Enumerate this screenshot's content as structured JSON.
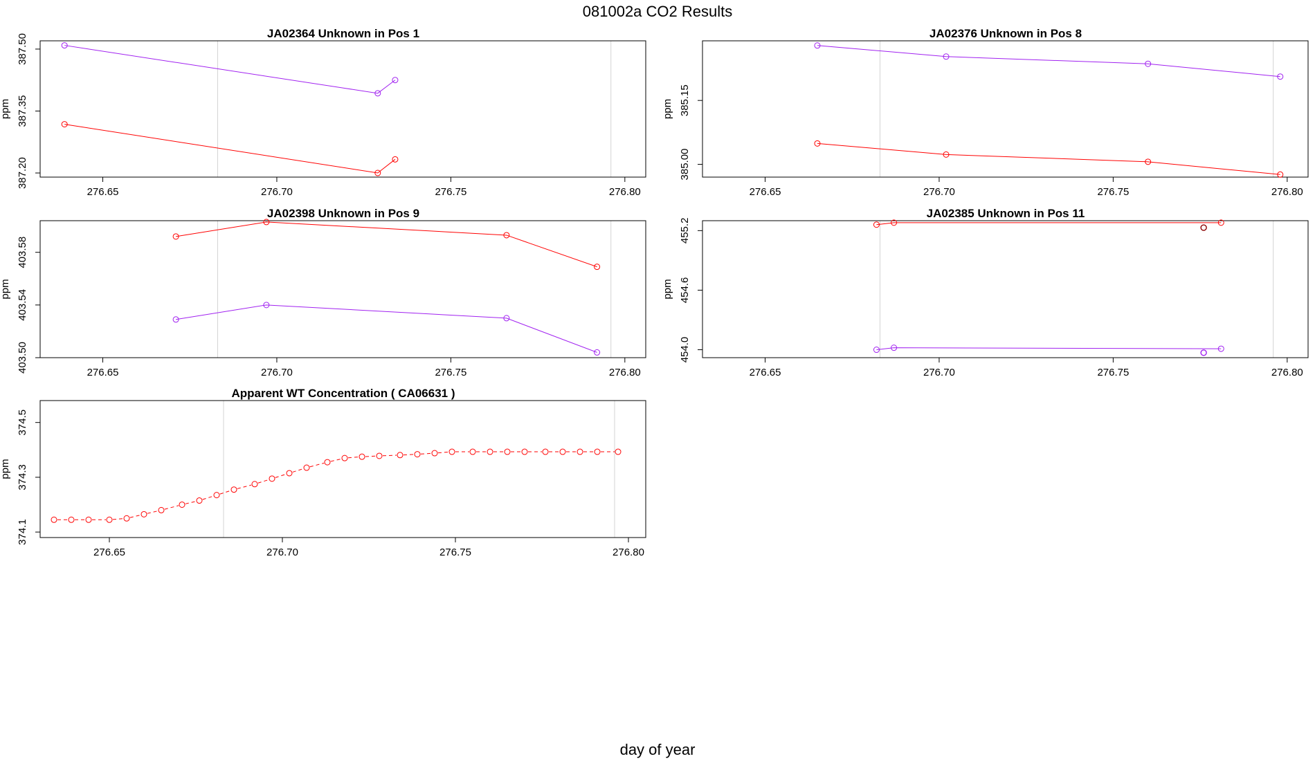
{
  "figure": {
    "title": "081002a  CO2 Results",
    "xlabel": "day of year"
  },
  "colors": {
    "red": "#ff0000",
    "purple": "#a020f0",
    "dark_red": "#8b0000",
    "ref_line": "#d3d3d3"
  },
  "chart_data": [
    {
      "type": "line",
      "title": "JA02364    Unknown in Pos 1",
      "ylabel": "ppm",
      "xlim": [
        276.632,
        276.806
      ],
      "ylim": [
        387.19,
        387.52
      ],
      "xticks": [
        "276.65",
        "276.70",
        "276.75",
        "276.80"
      ],
      "yticks": [
        "387.20",
        "387.35",
        "387.50"
      ],
      "vlines": [
        276.683,
        276.796
      ],
      "series": [
        {
          "name": "purple",
          "color": "purple",
          "x": [
            276.639,
            276.729,
            276.734
          ],
          "y": [
            387.509,
            387.393,
            387.425
          ]
        },
        {
          "name": "red",
          "color": "red",
          "x": [
            276.639,
            276.729,
            276.734
          ],
          "y": [
            387.318,
            387.2,
            387.233
          ]
        }
      ]
    },
    {
      "type": "line",
      "title": "JA02376    Unknown in Pos 8",
      "ylabel": "ppm",
      "xlim": [
        276.632,
        276.806
      ],
      "ylim": [
        384.97,
        385.29
      ],
      "xticks": [
        "276.65",
        "276.70",
        "276.75",
        "276.80"
      ],
      "yticks": [
        "385.00",
        "385.15"
      ],
      "vlines": [
        276.683,
        276.796
      ],
      "series": [
        {
          "name": "purple",
          "color": "purple",
          "x": [
            276.665,
            276.702,
            276.76,
            276.798
          ],
          "y": [
            385.279,
            385.253,
            385.236,
            385.206
          ]
        },
        {
          "name": "red",
          "color": "red",
          "x": [
            276.665,
            276.702,
            276.76,
            276.798
          ],
          "y": [
            385.049,
            385.023,
            385.006,
            384.976
          ]
        }
      ]
    },
    {
      "type": "line",
      "title": "JA02398    Unknown in Pos 9",
      "ylabel": "ppm",
      "xlim": [
        276.632,
        276.806
      ],
      "ylim": [
        403.5,
        403.604
      ],
      "xticks": [
        "276.65",
        "276.70",
        "276.75",
        "276.80"
      ],
      "yticks": [
        "403.50",
        "403.54",
        "403.58"
      ],
      "vlines": [
        276.683,
        276.796
      ],
      "series": [
        {
          "name": "red",
          "color": "red",
          "x": [
            276.671,
            276.697,
            276.766,
            276.792
          ],
          "y": [
            403.592,
            403.603,
            403.593,
            403.569
          ]
        },
        {
          "name": "purple",
          "color": "purple",
          "x": [
            276.671,
            276.697,
            276.766,
            276.792
          ],
          "y": [
            403.529,
            403.54,
            403.53,
            403.504
          ]
        }
      ]
    },
    {
      "type": "line",
      "title": "JA02385    Unknown in Pos 11",
      "ylabel": "ppm",
      "xlim": [
        276.632,
        276.806
      ],
      "ylim": [
        453.92,
        455.3
      ],
      "xticks": [
        "276.65",
        "276.70",
        "276.75",
        "276.80"
      ],
      "yticks": [
        "454.0",
        "454.6",
        "455.2"
      ],
      "vlines": [
        276.683,
        276.796
      ],
      "series": [
        {
          "name": "red",
          "color": "red",
          "x": [
            276.682,
            276.687,
            276.781
          ],
          "y": [
            455.26,
            455.28,
            455.28
          ]
        },
        {
          "name": "purple",
          "color": "purple",
          "x": [
            276.682,
            276.687,
            276.781
          ],
          "y": [
            454.0,
            454.02,
            454.01
          ]
        }
      ],
      "points": [
        {
          "name": "dark-red-point",
          "color": "dark_red",
          "x": 276.776,
          "y": 455.23
        },
        {
          "name": "dark-purple-point",
          "color": "purple",
          "x": 276.776,
          "y": 453.97
        }
      ]
    },
    {
      "type": "line",
      "title": "Apparent WT Concentration ( CA06631 )",
      "ylabel": "ppm",
      "xlim": [
        276.63,
        276.805
      ],
      "ylim": [
        374.08,
        374.58
      ],
      "xticks": [
        "276.65",
        "276.70",
        "276.75",
        "276.80"
      ],
      "yticks": [
        "374.1",
        "374.3",
        "374.5"
      ],
      "vlines": [
        276.683,
        276.796
      ],
      "dashed": true,
      "series": [
        {
          "name": "wt",
          "color": "red",
          "x": [
            276.634,
            276.639,
            276.644,
            276.65,
            276.655,
            276.66,
            276.665,
            276.671,
            276.676,
            276.681,
            276.686,
            276.692,
            276.697,
            276.702,
            276.707,
            276.713,
            276.718,
            276.723,
            276.728,
            276.734,
            276.739,
            276.744,
            276.749,
            276.755,
            276.76,
            276.765,
            276.77,
            276.776,
            276.781,
            276.786,
            276.791,
            276.797
          ],
          "y": [
            374.145,
            374.145,
            374.145,
            374.145,
            374.15,
            374.165,
            374.18,
            374.2,
            374.215,
            374.235,
            374.255,
            374.275,
            374.295,
            374.315,
            374.335,
            374.355,
            374.37,
            374.375,
            374.378,
            374.381,
            374.384,
            374.388,
            374.393,
            374.393,
            374.393,
            374.393,
            374.393,
            374.393,
            374.393,
            374.393,
            374.393,
            374.393
          ]
        }
      ]
    }
  ]
}
